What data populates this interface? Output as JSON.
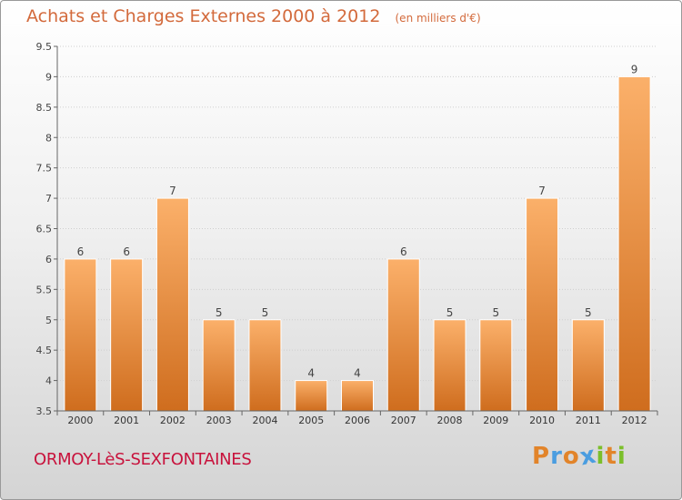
{
  "chart_data": {
    "type": "bar",
    "title": "Achats et Charges Externes 2000 à 2012",
    "subtitle": "(en milliers d'€)",
    "categories": [
      "2000",
      "2001",
      "2002",
      "2003",
      "2004",
      "2005",
      "2006",
      "2007",
      "2008",
      "2009",
      "2010",
      "2011",
      "2012"
    ],
    "values": [
      6,
      6,
      7,
      5,
      5,
      4,
      4,
      6,
      5,
      5,
      7,
      5,
      9
    ],
    "data_labels": [
      "6",
      "6",
      "7",
      "5",
      "5",
      "4",
      "4",
      "6",
      "5",
      "5",
      "7",
      "5",
      "9"
    ],
    "ylim": [
      3.5,
      9.5
    ],
    "yticks": [
      "3.5",
      "4",
      "4.5",
      "5",
      "5.5",
      "6",
      "6.5",
      "7",
      "7.5",
      "8",
      "8.5",
      "9",
      "9.5"
    ],
    "grid": true,
    "bar_color_top": "#fbb06a",
    "bar_color_bottom": "#cf6d1e"
  },
  "footer": {
    "place_name": "ORMOY-LèS-SEXFONTAINES",
    "logo_letters": [
      "P",
      "r",
      "o",
      "x",
      "i",
      "t",
      "i"
    ],
    "logo_colors": [
      "#e2842a",
      "#4a9de0",
      "#e2842a",
      "#4a9de0",
      "#7bbf2a",
      "#e2842a",
      "#7bbf2a"
    ]
  }
}
